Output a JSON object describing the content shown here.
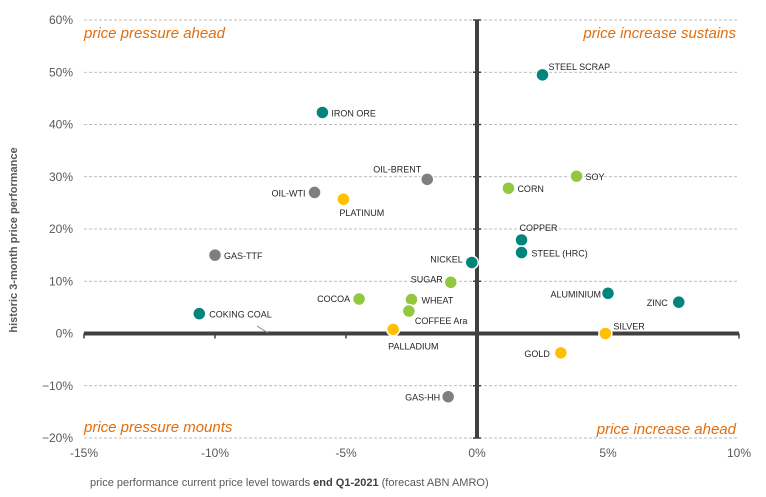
{
  "chart_data": {
    "type": "scatter",
    "ylabel": "historic 3-month price performance",
    "xlabel": {
      "prefix": "price performance current price level towards ",
      "bold": "end Q1-2021",
      "suffix": " (forecast ABN AMRO)"
    },
    "xlim": [
      -15,
      10
    ],
    "ylim": [
      -20,
      60
    ],
    "x_ticks": [
      -15,
      -10,
      -5,
      0,
      5,
      10
    ],
    "y_ticks": [
      -20,
      -10,
      0,
      10,
      20,
      30,
      40,
      50,
      60
    ],
    "x_tick_labels": [
      "-15%",
      "-10%",
      "-5%",
      "0%",
      "5%",
      "10%"
    ],
    "y_tick_labels": [
      "−20%",
      "−10%",
      "0%",
      "10%",
      "20%",
      "30%",
      "40%",
      "50%",
      "60%"
    ],
    "grid": "horizontal dashed",
    "quadrant_labels": {
      "top_left": "price pressure ahead",
      "top_right": "price increase sustains",
      "bottom_left": "price pressure mounts",
      "bottom_right": "price increase ahead"
    },
    "colors": {
      "teal": "#00857c",
      "green": "#92c83e",
      "yellow": "#ffc000",
      "grey": "#7f7f7f",
      "quadrant_text": "#e46c0a",
      "axis": "#404040"
    },
    "points": [
      {
        "label": "STEEL SCRAP",
        "x": 2.5,
        "y": 49.5,
        "color": "teal"
      },
      {
        "label": "IRON ORE",
        "x": -5.9,
        "y": 42.3,
        "color": "teal"
      },
      {
        "label": "OIL-BRENT",
        "x": -1.9,
        "y": 29.5,
        "color": "grey"
      },
      {
        "label": "OIL-WTI",
        "x": -6.2,
        "y": 27.0,
        "color": "grey"
      },
      {
        "label": "PLATINUM",
        "x": -5.1,
        "y": 25.7,
        "color": "yellow"
      },
      {
        "label": "SOY",
        "x": 3.8,
        "y": 30.1,
        "color": "green"
      },
      {
        "label": "CORN",
        "x": 1.2,
        "y": 27.8,
        "color": "green"
      },
      {
        "label": "COPPER",
        "x": 1.7,
        "y": 17.9,
        "color": "teal"
      },
      {
        "label": "STEEL (HRC)",
        "x": 1.7,
        "y": 15.5,
        "color": "teal"
      },
      {
        "label": "NICKEL",
        "x": -0.2,
        "y": 13.6,
        "color": "teal"
      },
      {
        "label": "GAS-TTF",
        "x": -10.0,
        "y": 15.0,
        "color": "grey"
      },
      {
        "label": "SUGAR",
        "x": -1.0,
        "y": 9.8,
        "color": "green"
      },
      {
        "label": "ALUMINIUM",
        "x": 5.0,
        "y": 7.7,
        "color": "teal"
      },
      {
        "label": "ZINC",
        "x": 7.7,
        "y": 6.0,
        "color": "teal"
      },
      {
        "label": "COCOA",
        "x": -4.5,
        "y": 6.6,
        "color": "green"
      },
      {
        "label": "WHEAT",
        "x": -2.5,
        "y": 6.5,
        "color": "green"
      },
      {
        "label": "COFFEE Ara",
        "x": -2.6,
        "y": 4.3,
        "color": "green"
      },
      {
        "label": "COKING COAL",
        "x": -10.6,
        "y": 3.8,
        "color": "teal"
      },
      {
        "label": "PALLADIUM",
        "x": -3.2,
        "y": 0.8,
        "color": "yellow"
      },
      {
        "label": "SILVER",
        "x": 4.9,
        "y": 0.0,
        "color": "yellow"
      },
      {
        "label": "GOLD",
        "x": 3.2,
        "y": -3.7,
        "color": "yellow"
      },
      {
        "label": "GAS-HH",
        "x": -1.1,
        "y": -12.1,
        "color": "grey"
      }
    ]
  }
}
